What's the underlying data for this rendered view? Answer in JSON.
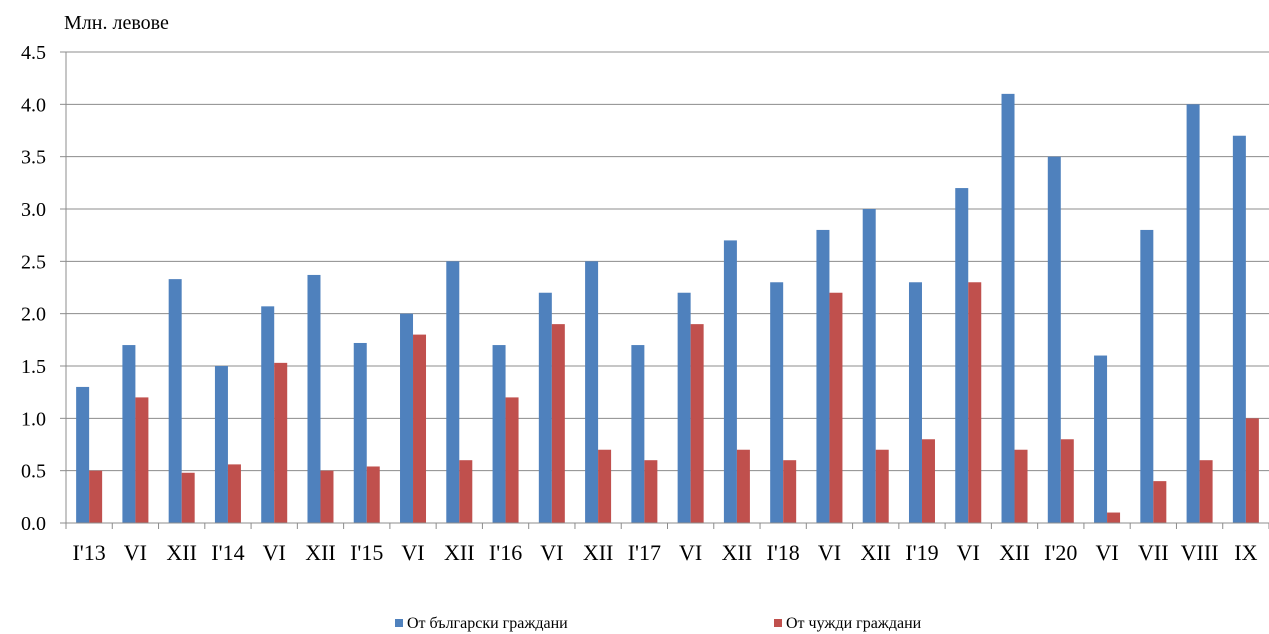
{
  "chart_data": {
    "type": "bar",
    "ylabel": "Млн. левове",
    "ylim": [
      0,
      4.5
    ],
    "yticks": [
      "0.0",
      "0.5",
      "1.0",
      "1.5",
      "2.0",
      "2.5",
      "3.0",
      "3.5",
      "4.0",
      "4.5"
    ],
    "categories": [
      "I'13",
      "VI",
      "XII",
      "I'14",
      "VI",
      "XII",
      "I'15",
      "VI",
      "XII",
      "I'16",
      "VI",
      "XII",
      "I'17",
      "VI",
      "XII",
      "I'18",
      "VI",
      "XII",
      "I'19",
      "VI",
      "XII",
      "I'20",
      "VI",
      "VII",
      "VIII",
      "IX"
    ],
    "series": [
      {
        "name": "От български граждани",
        "color": "#4f81bd",
        "values": [
          1.3,
          1.7,
          2.33,
          1.5,
          2.07,
          2.37,
          1.72,
          2.0,
          2.5,
          1.7,
          2.2,
          2.5,
          1.7,
          2.2,
          2.7,
          2.3,
          2.8,
          3.0,
          2.3,
          3.2,
          4.1,
          3.5,
          1.6,
          2.8,
          4.0,
          3.7
        ]
      },
      {
        "name": "От чужди граждани",
        "color": "#c0504d",
        "values": [
          0.5,
          1.2,
          0.48,
          0.56,
          1.53,
          0.5,
          0.54,
          1.8,
          0.6,
          1.2,
          1.9,
          0.7,
          0.6,
          1.9,
          0.7,
          0.6,
          2.2,
          0.7,
          0.8,
          2.3,
          0.7,
          0.8,
          0.1,
          0.4,
          0.6,
          1.0
        ]
      }
    ],
    "grid": true,
    "legend": "bottom"
  }
}
